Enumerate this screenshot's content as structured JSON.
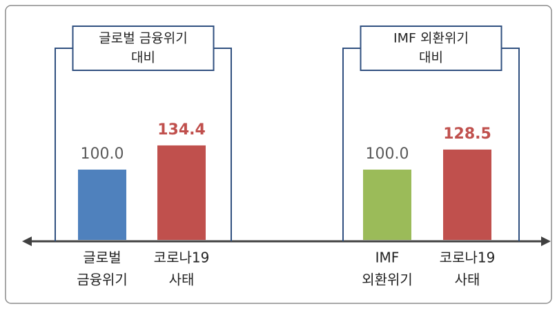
{
  "chart_data": [
    {
      "type": "bar",
      "title": [
        "글로벌 금융위기",
        "대비"
      ],
      "categories": [
        [
          "글로벌",
          "금융위기"
        ],
        [
          "코로나19",
          "사태"
        ]
      ],
      "values": [
        100.0,
        134.4
      ],
      "value_labels": [
        "100.0",
        "134.4"
      ],
      "colors": [
        "#4f81bd",
        "#c0504d"
      ],
      "value_label_colors": [
        "#595959",
        "#c0504d"
      ]
    },
    {
      "type": "bar",
      "title": [
        "IMF 외환위기",
        "대비"
      ],
      "categories": [
        [
          "IMF",
          "외환위기"
        ],
        [
          "코로나19",
          "사태"
        ]
      ],
      "values": [
        100.0,
        128.5
      ],
      "value_labels": [
        "100.0",
        "128.5"
      ],
      "colors": [
        "#9bbb59",
        "#c0504d"
      ],
      "value_label_colors": [
        "#595959",
        "#c0504d"
      ]
    }
  ]
}
